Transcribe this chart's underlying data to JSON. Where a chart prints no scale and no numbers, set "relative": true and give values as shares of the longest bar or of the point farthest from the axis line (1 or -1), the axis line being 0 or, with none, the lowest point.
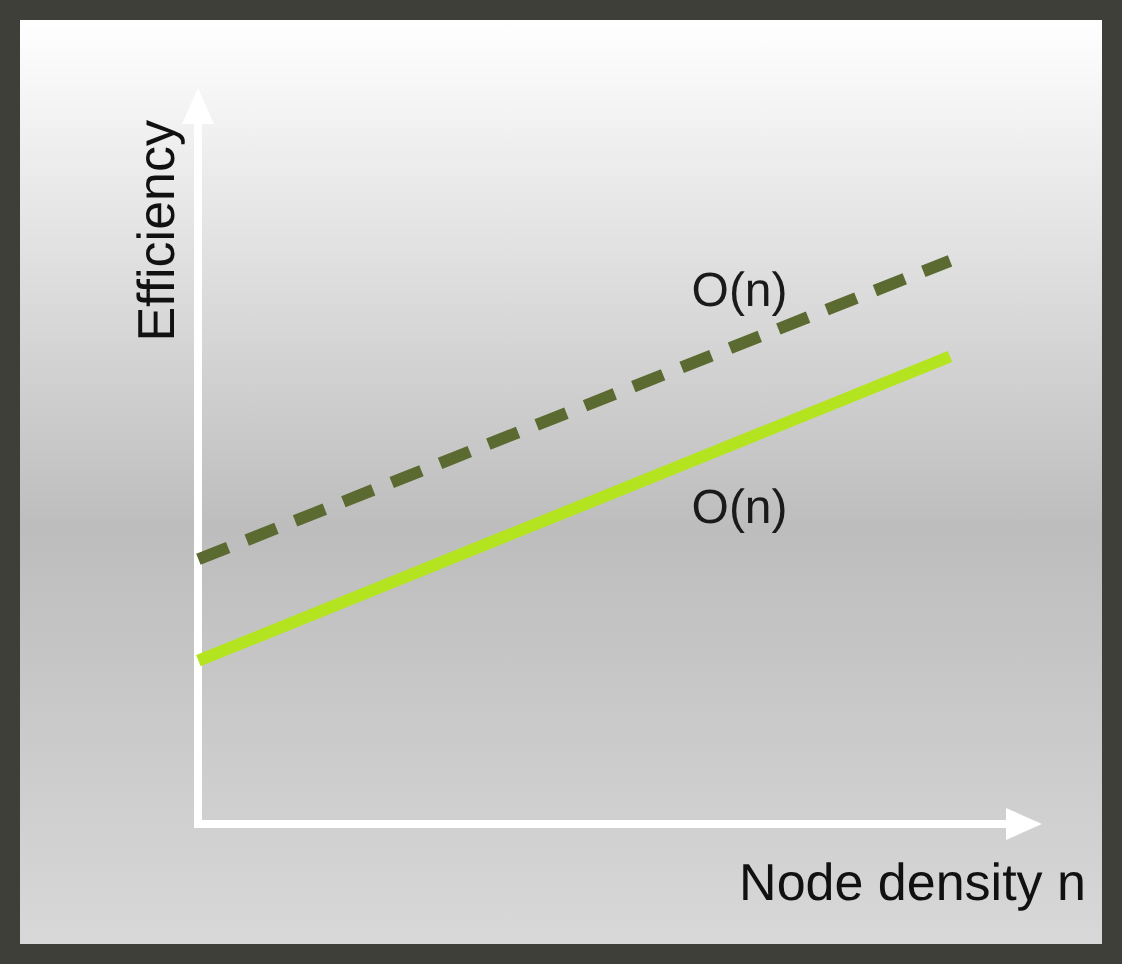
{
  "chart_data": {
    "type": "line",
    "relative": true,
    "xlabel": "Node density n",
    "ylabel": "Efficiency",
    "categories": [
      null,
      null
    ],
    "legend": false,
    "grid": false,
    "marker": "none",
    "series": [
      {
        "name": "O(n)",
        "color": "#5b6a30",
        "values": [
          0.47,
          1.0
        ],
        "line_style": "dashed"
      },
      {
        "name": "O(n)",
        "color": "#b4e41f",
        "values": [
          0.29,
          0.83
        ],
        "line_style": "solid"
      }
    ]
  }
}
